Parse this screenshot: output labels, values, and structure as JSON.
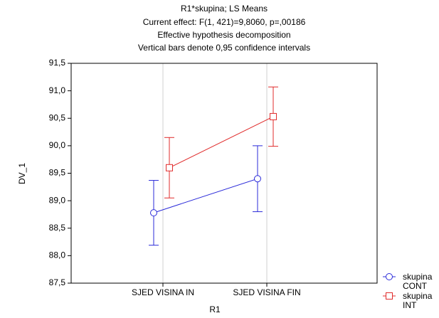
{
  "chart_data": {
    "type": "line",
    "title": "R1*skupina; LS Means",
    "subtitle": [
      "Current effect: F(1, 421)=9,8060, p=,00186",
      "Effective hypothesis decomposition",
      "Vertical bars denote 0,95 confidence intervals"
    ],
    "xlabel": "R1",
    "ylabel": "DV_1",
    "categories": [
      "SJED VISINA IN",
      "SJED VISINA FIN"
    ],
    "series": [
      {
        "name": "skupina CONT",
        "color": "#2b2bd9",
        "marker": "circle",
        "values": [
          88.78,
          89.4
        ],
        "errors": [
          0.59,
          0.6
        ]
      },
      {
        "name": "skupina INT",
        "color": "#e02b2b",
        "marker": "square",
        "values": [
          89.6,
          90.53
        ],
        "errors": [
          0.55,
          0.54
        ]
      }
    ],
    "ylim": [
      87.5,
      91.5
    ],
    "yticks": [
      {
        "value": 87.5,
        "label": "87,5"
      },
      {
        "value": 88,
        "label": "88,0"
      },
      {
        "value": 88.5,
        "label": "88,5"
      },
      {
        "value": 89,
        "label": "89,0"
      },
      {
        "value": 89.5,
        "label": "89,5"
      },
      {
        "value": 90,
        "label": "90,0"
      },
      {
        "value": 90.5,
        "label": "90,5"
      },
      {
        "value": 91,
        "label": "91,0"
      },
      {
        "value": 91.5,
        "label": "91,5"
      }
    ],
    "grid": true,
    "legend": "lower right"
  }
}
